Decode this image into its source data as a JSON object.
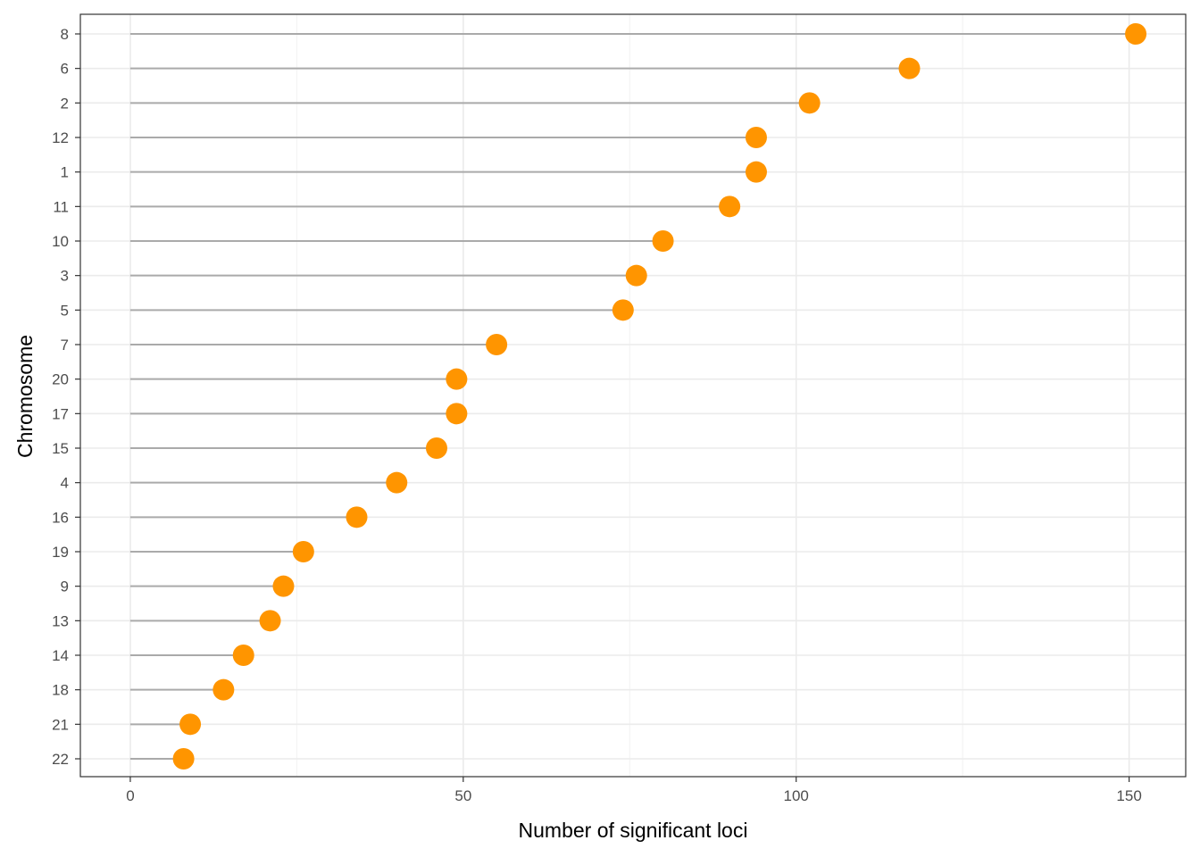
{
  "chart_data": {
    "type": "lollipop",
    "orientation": "horizontal",
    "xlabel": "Number of significant loci",
    "ylabel": "Chromosome",
    "xlim": [
      -7.5,
      158.5
    ],
    "x_ticks": [
      0,
      50,
      100,
      150
    ],
    "x_tick_labels": [
      "0",
      "50",
      "100",
      "150"
    ],
    "categories": [
      "8",
      "6",
      "2",
      "12",
      "1",
      "11",
      "10",
      "3",
      "5",
      "7",
      "20",
      "17",
      "15",
      "4",
      "16",
      "19",
      "9",
      "13",
      "14",
      "18",
      "21",
      "22"
    ],
    "values": [
      151,
      117,
      102,
      94,
      94,
      90,
      80,
      76,
      74,
      55,
      49,
      49,
      46,
      40,
      34,
      26,
      23,
      21,
      17,
      14,
      9,
      8
    ],
    "point_color": "#FF9500",
    "stem_color": "#AAAAAA",
    "grid": true,
    "legend": "none"
  }
}
